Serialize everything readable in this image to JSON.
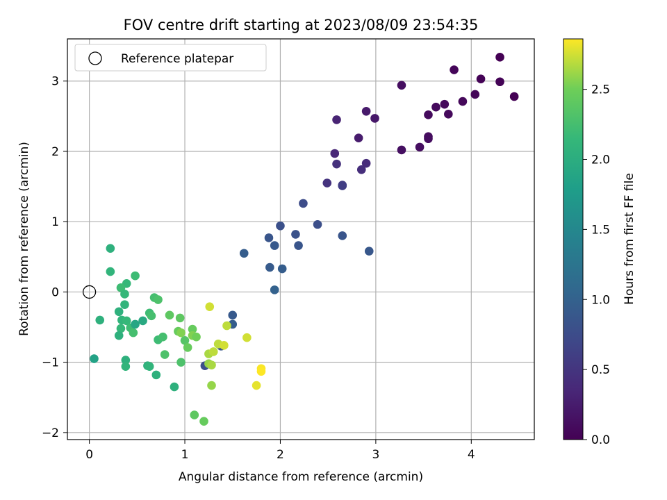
{
  "chart_data": {
    "type": "scatter",
    "title": "FOV centre drift starting at 2023/08/09 23:54:35",
    "xlabel": "Angular distance from reference (arcmin)",
    "ylabel": "Rotation from reference (arcmin)",
    "xlim": [
      -0.23,
      4.66
    ],
    "ylim": [
      -2.1,
      3.6
    ],
    "xticks": [
      0,
      1,
      2,
      3,
      4
    ],
    "yticks": [
      -2,
      -1,
      0,
      1,
      2,
      3
    ],
    "grid": true,
    "legend": {
      "placement": "top-left",
      "entries": [
        "Reference platepar"
      ]
    },
    "reference_point": {
      "x": 0,
      "y": 0
    },
    "colorbar": {
      "label": "Hours from first FF file",
      "colormap": "viridis",
      "range": [
        0,
        2.86
      ],
      "ticks": [
        "0.0",
        "0.5",
        "1.0",
        "1.5",
        "2.0",
        "2.5"
      ]
    },
    "points": [
      {
        "x": 4.3,
        "y": 3.34,
        "c": 0.0
      },
      {
        "x": 4.1,
        "y": 3.03,
        "c": 0.02
      },
      {
        "x": 4.3,
        "y": 2.99,
        "c": 0.02
      },
      {
        "x": 4.45,
        "y": 2.78,
        "c": 0.0
      },
      {
        "x": 4.04,
        "y": 2.81,
        "c": 0.04
      },
      {
        "x": 3.82,
        "y": 3.16,
        "c": 0.05
      },
      {
        "x": 3.91,
        "y": 2.71,
        "c": 0.06
      },
      {
        "x": 3.72,
        "y": 2.67,
        "c": 0.07
      },
      {
        "x": 3.63,
        "y": 2.63,
        "c": 0.08
      },
      {
        "x": 3.76,
        "y": 2.53,
        "c": 0.07
      },
      {
        "x": 3.55,
        "y": 2.52,
        "c": 0.09
      },
      {
        "x": 3.55,
        "y": 2.21,
        "c": 0.1
      },
      {
        "x": 3.55,
        "y": 2.18,
        "c": 0.11
      },
      {
        "x": 3.46,
        "y": 2.06,
        "c": 0.12
      },
      {
        "x": 3.27,
        "y": 2.94,
        "c": 0.12
      },
      {
        "x": 3.27,
        "y": 2.02,
        "c": 0.13
      },
      {
        "x": 2.99,
        "y": 2.47,
        "c": 0.2
      },
      {
        "x": 2.9,
        "y": 2.57,
        "c": 0.23
      },
      {
        "x": 2.82,
        "y": 2.19,
        "c": 0.25
      },
      {
        "x": 2.59,
        "y": 2.45,
        "c": 0.32
      },
      {
        "x": 2.57,
        "y": 1.97,
        "c": 0.35
      },
      {
        "x": 2.9,
        "y": 1.83,
        "c": 0.4
      },
      {
        "x": 2.85,
        "y": 1.74,
        "c": 0.42
      },
      {
        "x": 2.59,
        "y": 1.82,
        "c": 0.45
      },
      {
        "x": 2.49,
        "y": 1.55,
        "c": 0.48
      },
      {
        "x": 2.65,
        "y": 1.52,
        "c": 0.55
      },
      {
        "x": 2.65,
        "y": 1.51,
        "c": 0.6
      },
      {
        "x": 2.24,
        "y": 1.26,
        "c": 0.75
      },
      {
        "x": 2.39,
        "y": 0.96,
        "c": 0.78
      },
      {
        "x": 2.0,
        "y": 0.94,
        "c": 0.8
      },
      {
        "x": 2.16,
        "y": 0.82,
        "c": 0.82
      },
      {
        "x": 2.19,
        "y": 0.66,
        "c": 0.85
      },
      {
        "x": 2.65,
        "y": 0.8,
        "c": 0.85
      },
      {
        "x": 2.93,
        "y": 0.58,
        "c": 0.88
      },
      {
        "x": 1.88,
        "y": 0.77,
        "c": 0.85
      },
      {
        "x": 1.94,
        "y": 0.66,
        "c": 0.9
      },
      {
        "x": 1.62,
        "y": 0.55,
        "c": 0.95
      },
      {
        "x": 1.89,
        "y": 0.35,
        "c": 0.92
      },
      {
        "x": 2.02,
        "y": 0.33,
        "c": 0.95
      },
      {
        "x": 1.94,
        "y": 0.03,
        "c": 1.0
      },
      {
        "x": 1.5,
        "y": -0.33,
        "c": 0.9
      },
      {
        "x": 1.5,
        "y": -0.46,
        "c": 0.95
      },
      {
        "x": 1.38,
        "y": -0.77,
        "c": 0.85
      },
      {
        "x": 1.21,
        "y": -1.05,
        "c": 0.8
      },
      {
        "x": 0.05,
        "y": -0.95,
        "c": 1.85
      },
      {
        "x": 0.11,
        "y": -0.4,
        "c": 2.05
      },
      {
        "x": 0.22,
        "y": 0.62,
        "c": 2.05
      },
      {
        "x": 0.22,
        "y": 0.29,
        "c": 2.1
      },
      {
        "x": 0.48,
        "y": 0.23,
        "c": 2.2
      },
      {
        "x": 0.39,
        "y": 0.12,
        "c": 2.15
      },
      {
        "x": 0.33,
        "y": 0.06,
        "c": 2.2
      },
      {
        "x": 0.37,
        "y": -0.03,
        "c": 2.15
      },
      {
        "x": 0.37,
        "y": -0.18,
        "c": 2.1
      },
      {
        "x": 0.31,
        "y": -0.28,
        "c": 2.05
      },
      {
        "x": 0.34,
        "y": -0.4,
        "c": 2.1
      },
      {
        "x": 0.39,
        "y": -0.41,
        "c": 2.15
      },
      {
        "x": 0.33,
        "y": -0.52,
        "c": 2.15
      },
      {
        "x": 0.31,
        "y": -0.62,
        "c": 2.05
      },
      {
        "x": 0.43,
        "y": -0.51,
        "c": 2.2
      },
      {
        "x": 0.46,
        "y": -0.58,
        "c": 2.25
      },
      {
        "x": 0.38,
        "y": -0.97,
        "c": 2.05
      },
      {
        "x": 0.38,
        "y": -1.06,
        "c": 2.1
      },
      {
        "x": 0.56,
        "y": -0.41,
        "c": 1.95
      },
      {
        "x": 0.48,
        "y": -0.46,
        "c": 1.9
      },
      {
        "x": 0.63,
        "y": -0.3,
        "c": 2.2
      },
      {
        "x": 0.65,
        "y": -0.34,
        "c": 2.25
      },
      {
        "x": 0.68,
        "y": -0.08,
        "c": 2.25
      },
      {
        "x": 0.72,
        "y": -0.11,
        "c": 2.3
      },
      {
        "x": 0.61,
        "y": -1.05,
        "c": 2.05
      },
      {
        "x": 0.63,
        "y": -1.06,
        "c": 2.1
      },
      {
        "x": 0.7,
        "y": -1.18,
        "c": 2.05
      },
      {
        "x": 0.72,
        "y": -0.68,
        "c": 2.2
      },
      {
        "x": 0.77,
        "y": -0.64,
        "c": 2.25
      },
      {
        "x": 0.79,
        "y": -0.89,
        "c": 2.3
      },
      {
        "x": 0.84,
        "y": -0.33,
        "c": 2.4
      },
      {
        "x": 0.89,
        "y": -1.35,
        "c": 2.05
      },
      {
        "x": 0.95,
        "y": -0.37,
        "c": 2.4
      },
      {
        "x": 0.93,
        "y": -0.56,
        "c": 2.45
      },
      {
        "x": 0.96,
        "y": -0.58,
        "c": 2.55
      },
      {
        "x": 0.96,
        "y": -1.0,
        "c": 2.3
      },
      {
        "x": 1.0,
        "y": -0.69,
        "c": 2.35
      },
      {
        "x": 1.03,
        "y": -0.79,
        "c": 2.45
      },
      {
        "x": 1.08,
        "y": -0.53,
        "c": 2.45
      },
      {
        "x": 1.08,
        "y": -0.62,
        "c": 2.55
      },
      {
        "x": 1.12,
        "y": -0.64,
        "c": 2.5
      },
      {
        "x": 1.1,
        "y": -1.75,
        "c": 2.4
      },
      {
        "x": 1.2,
        "y": -1.84,
        "c": 2.45
      },
      {
        "x": 1.26,
        "y": -0.21,
        "c": 2.75
      },
      {
        "x": 1.25,
        "y": -0.88,
        "c": 2.65
      },
      {
        "x": 1.3,
        "y": -0.85,
        "c": 2.7
      },
      {
        "x": 1.25,
        "y": -1.02,
        "c": 2.6
      },
      {
        "x": 1.28,
        "y": -1.04,
        "c": 2.65
      },
      {
        "x": 1.28,
        "y": -1.33,
        "c": 2.6
      },
      {
        "x": 1.35,
        "y": -0.74,
        "c": 2.7
      },
      {
        "x": 1.41,
        "y": -0.76,
        "c": 2.75
      },
      {
        "x": 1.44,
        "y": -0.48,
        "c": 2.7
      },
      {
        "x": 1.65,
        "y": -0.65,
        "c": 2.75
      },
      {
        "x": 1.8,
        "y": -1.09,
        "c": 2.85
      },
      {
        "x": 1.8,
        "y": -1.13,
        "c": 2.86
      },
      {
        "x": 1.75,
        "y": -1.33,
        "c": 2.8
      }
    ]
  }
}
